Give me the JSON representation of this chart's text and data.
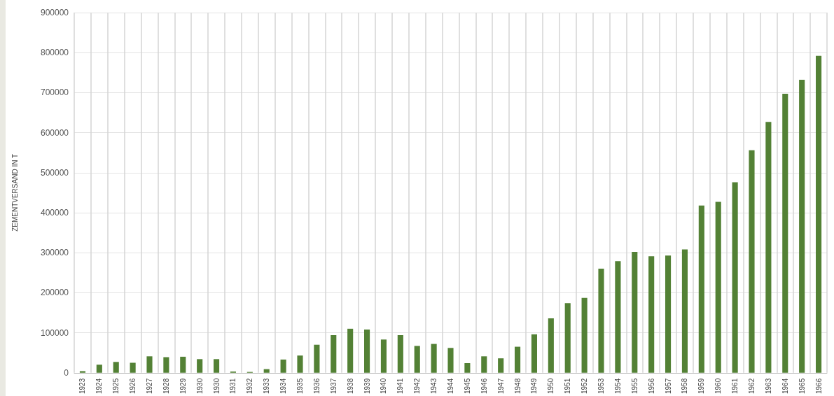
{
  "chart_data": {
    "type": "bar",
    "ylabel": "ZEMENTVERSAND IN T",
    "categories": [
      "1923",
      "1924",
      "1925",
      "1926",
      "1927",
      "1928",
      "1929",
      "1930",
      "1930",
      "1931",
      "1932",
      "1933",
      "1934",
      "1935",
      "1936",
      "1937",
      "1938",
      "1939",
      "1940",
      "1941",
      "1942",
      "1943",
      "1944",
      "1945",
      "1946",
      "1947",
      "1948",
      "1949",
      "1950",
      "1951",
      "1952",
      "1953",
      "1954",
      "1955",
      "1956",
      "1957",
      "1958",
      "1959",
      "1960",
      "1961",
      "1962",
      "1963",
      "1964",
      "1965",
      "1966"
    ],
    "values": [
      4000,
      20000,
      27000,
      25000,
      41000,
      39000,
      40000,
      34000,
      34000,
      3000,
      2000,
      9000,
      33000,
      43000,
      70000,
      94000,
      110000,
      108000,
      83000,
      94000,
      67000,
      72000,
      62000,
      24000,
      41000,
      36000,
      65000,
      96000,
      136000,
      174000,
      187000,
      260000,
      279000,
      302000,
      291000,
      293000,
      308000,
      418000,
      427000,
      476000,
      556000,
      627000,
      697000,
      732000,
      792000
    ],
    "color": "#538135",
    "ylim": [
      0,
      900000
    ],
    "yticks": [
      0,
      100000,
      200000,
      300000,
      400000,
      500000,
      600000,
      700000,
      800000,
      900000
    ],
    "grid": true
  }
}
